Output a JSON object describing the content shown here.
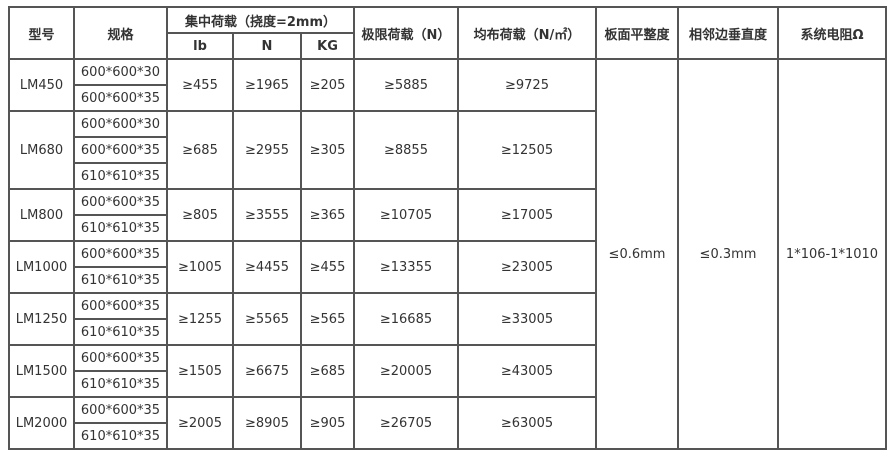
{
  "header": {
    "model": "型号",
    "spec": "规格",
    "concentrated_load": "集中荷载（挠度=2mm）",
    "lb": "lb",
    "n": "N",
    "kg": "KG",
    "ultimate_load": "极限荷载（N）",
    "uniform_load": "均布荷载（N/㎡）",
    "flatness": "板面平整度",
    "perpendicularity": "相邻边垂直度",
    "resistance": "系统电阻Ω"
  },
  "shared": {
    "flatness": "≤0.6mm",
    "perpendicularity": "≤0.3mm",
    "resistance": "1*106-1*1010"
  },
  "rows": [
    {
      "model": "LM450",
      "specs": [
        "600*600*30",
        "600*600*35"
      ],
      "lb": "≥455",
      "n": "≥1965",
      "kg": "≥205",
      "ultimate": "≥5885",
      "uniform": "≥9725"
    },
    {
      "model": "LM680",
      "specs": [
        "600*600*30",
        "600*600*35",
        "610*610*35"
      ],
      "lb": "≥685",
      "n": "≥2955",
      "kg": "≥305",
      "ultimate": "≥8855",
      "uniform": "≥12505"
    },
    {
      "model": "LM800",
      "specs": [
        "600*600*35",
        "610*610*35"
      ],
      "lb": "≥805",
      "n": "≥3555",
      "kg": "≥365",
      "ultimate": "≥10705",
      "uniform": "≥17005"
    },
    {
      "model": "LM1000",
      "specs": [
        "600*600*35",
        "610*610*35"
      ],
      "lb": "≥1005",
      "n": "≥4455",
      "kg": "≥455",
      "ultimate": "≥13355",
      "uniform": "≥23005"
    },
    {
      "model": "LM1250",
      "specs": [
        "600*600*35",
        "610*610*35"
      ],
      "lb": "≥1255",
      "n": "≥5565",
      "kg": "≥565",
      "ultimate": "≥16685",
      "uniform": "≥33005"
    },
    {
      "model": "LM1500",
      "specs": [
        "600*600*35",
        "610*610*35"
      ],
      "lb": "≥1505",
      "n": "≥6675",
      "kg": "≥685",
      "ultimate": "≥20005",
      "uniform": "≥43005"
    },
    {
      "model": "LM2000",
      "specs": [
        "600*600*35",
        "610*610*35"
      ],
      "lb": "≥2005",
      "n": "≥8905",
      "kg": "≥905",
      "ultimate": "≥26705",
      "uniform": "≥63005"
    }
  ]
}
